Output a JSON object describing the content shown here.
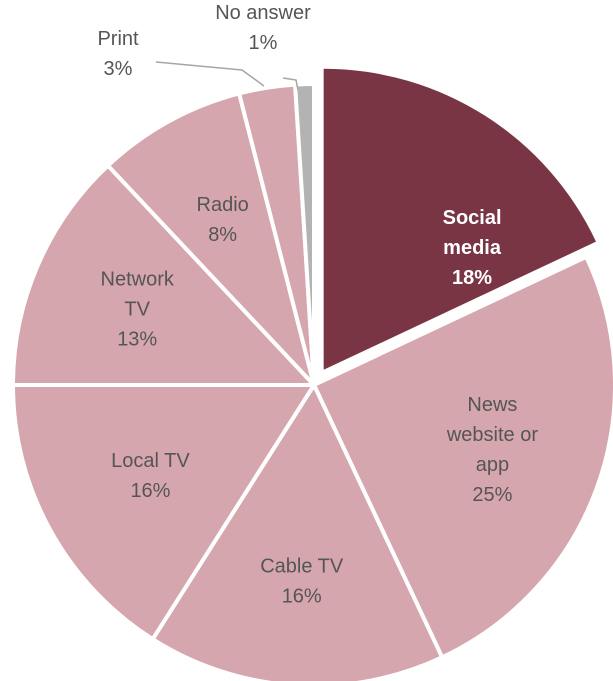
{
  "chart_data": {
    "type": "pie",
    "title": "",
    "slices": [
      {
        "label_lines": [
          "Social",
          "media"
        ],
        "value": 18,
        "value_text": "18%",
        "color": "#7a3545",
        "exploded": true,
        "emphasis": true
      },
      {
        "label_lines": [
          "News",
          "website or",
          "app"
        ],
        "value": 25,
        "value_text": "25%",
        "color": "#d6a6af"
      },
      {
        "label_lines": [
          "Cable TV"
        ],
        "value": 16,
        "value_text": "16%",
        "color": "#d6a6af"
      },
      {
        "label_lines": [
          "Local TV"
        ],
        "value": 16,
        "value_text": "16%",
        "color": "#d6a6af"
      },
      {
        "label_lines": [
          "Network",
          "TV"
        ],
        "value": 13,
        "value_text": "13%",
        "color": "#d6a6af"
      },
      {
        "label_lines": [
          "Radio"
        ],
        "value": 8,
        "value_text": "8%",
        "color": "#d6a6af"
      },
      {
        "label_lines": [
          "Print"
        ],
        "value": 3,
        "value_text": "3%",
        "color": "#d6a6af",
        "label_outside": true
      },
      {
        "label_lines": [
          "No answer"
        ],
        "value": 1,
        "value_text": "1%",
        "color": "#b3b3b3",
        "label_outside": true
      }
    ],
    "colors": {
      "highlight": "#7a3545",
      "base": "#d6a6af",
      "no_answer": "#b3b3b3",
      "separator": "#ffffff",
      "label_text": "#555555",
      "highlight_text": "#ffffff"
    }
  }
}
